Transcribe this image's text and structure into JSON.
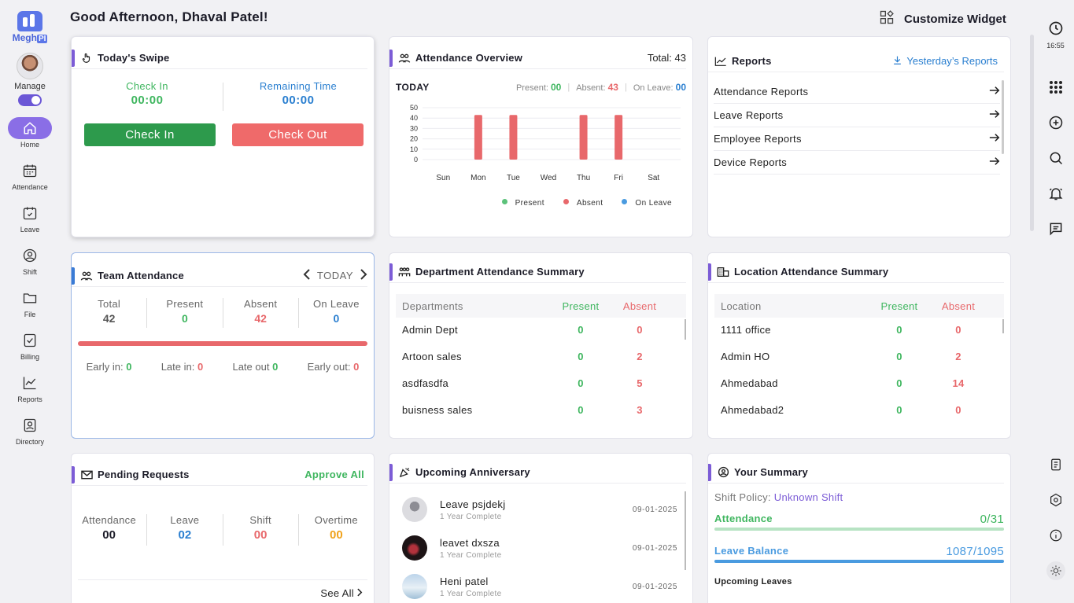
{
  "brand": {
    "name": "Megh",
    "suffix": "PI"
  },
  "header": {
    "greeting": "Good Afternoon, Dhaval Patel!",
    "customize_label": "Customize Widget"
  },
  "sidebar": {
    "manage_label": "Manage",
    "items": [
      {
        "label": "Home",
        "icon": "home-icon"
      },
      {
        "label": "Attendance",
        "icon": "calendar-icon"
      },
      {
        "label": "Leave",
        "icon": "leave-calendar-icon"
      },
      {
        "label": "Shift",
        "icon": "shift-icon"
      },
      {
        "label": "File",
        "icon": "folder-icon"
      },
      {
        "label": "Billing",
        "icon": "billing-icon"
      },
      {
        "label": "Reports",
        "icon": "chart-line-icon"
      },
      {
        "label": "Directory",
        "icon": "directory-icon"
      }
    ]
  },
  "rail": {
    "time": "16:55"
  },
  "swipe": {
    "title": "Today's Swipe",
    "check_in_label": "Check In",
    "check_in_value": "00:00",
    "remaining_label": "Remaining Time",
    "remaining_value": "00:00",
    "check_in_button": "Check In",
    "check_out_button": "Check Out"
  },
  "overview": {
    "title": "Attendance Overview",
    "total_label": "Total:",
    "total": "43",
    "today_label": "TODAY",
    "present_label": "Present:",
    "present": "00",
    "absent_label": "Absent:",
    "absent": "43",
    "leave_label": "On Leave:",
    "leave": "00"
  },
  "chart_data": {
    "type": "bar",
    "categories": [
      "Sun",
      "Mon",
      "Tue",
      "Wed",
      "Thu",
      "Fri",
      "Sat"
    ],
    "series": [
      {
        "name": "Present",
        "color": "#5cc27a",
        "values": [
          0,
          0,
          0,
          0,
          0,
          0,
          0
        ]
      },
      {
        "name": "Absent",
        "color": "#e8686b",
        "values": [
          0,
          43,
          43,
          0,
          43,
          43,
          0
        ]
      },
      {
        "name": "On Leave",
        "color": "#4a9be0",
        "values": [
          0,
          0,
          0,
          0,
          0,
          0,
          0
        ]
      }
    ],
    "ylim": [
      0,
      50
    ],
    "yticks": [
      0,
      10,
      20,
      30,
      40,
      50
    ],
    "legend": "bottom-right",
    "grid": true
  },
  "reports": {
    "title": "Reports",
    "yesterday_label": "Yesterday’s Reports",
    "items": [
      "Attendance Reports",
      "Leave Reports",
      "Employee Reports",
      "Device Reports"
    ]
  },
  "team": {
    "title": "Team Attendance",
    "period": "TODAY",
    "total_label": "Total",
    "total": "42",
    "present_label": "Present",
    "present": "0",
    "absent_label": "Absent",
    "absent": "42",
    "leave_label": "On Leave",
    "leave": "0",
    "absent_fraction": 1.0,
    "early_in_label": "Early in:",
    "early_in": "0",
    "late_in_label": "Late in:",
    "late_in": "0",
    "late_out_label": "Late out",
    "late_out": "0",
    "early_out_label": "Early out:",
    "early_out": "0"
  },
  "dept": {
    "title": "Department Attendance Summary",
    "headers": [
      "Departments",
      "Present",
      "Absent"
    ],
    "rows": [
      {
        "name": "Admin Dept",
        "present": "0",
        "absent": "0"
      },
      {
        "name": "Artoon sales",
        "present": "0",
        "absent": "2"
      },
      {
        "name": "asdfasdfa",
        "present": "0",
        "absent": "5"
      },
      {
        "name": "buisness sales",
        "present": "0",
        "absent": "3"
      }
    ]
  },
  "location": {
    "title": "Location Attendance Summary",
    "headers": [
      "Location",
      "Present",
      "Absent"
    ],
    "rows": [
      {
        "name": "1111 office",
        "present": "0",
        "absent": "0"
      },
      {
        "name": "Admin HO",
        "present": "0",
        "absent": "2"
      },
      {
        "name": "Ahmedabad",
        "present": "0",
        "absent": "14"
      },
      {
        "name": "Ahmedabad2",
        "present": "0",
        "absent": "0"
      }
    ]
  },
  "pending": {
    "title": "Pending Requests",
    "approve_all": "Approve All",
    "attendance_label": "Attendance",
    "attendance": "00",
    "leave_label": "Leave",
    "leave": "02",
    "shift_label": "Shift",
    "shift": "00",
    "overtime_label": "Overtime",
    "overtime": "00",
    "see_all": "See All"
  },
  "anniversary": {
    "title": "Upcoming Anniversary",
    "items": [
      {
        "name": "Leave psjdekj",
        "sub": "1 Year Complete",
        "date": "09-01-2025"
      },
      {
        "name": "leavet dxsza",
        "sub": "1 Year Complete",
        "date": "09-01-2025"
      },
      {
        "name": "Heni patel",
        "sub": "1 Year Complete",
        "date": "09-01-2025"
      }
    ]
  },
  "summary": {
    "title": "Your Summary",
    "policy_label": "Shift Policy:",
    "policy_value": "Unknown Shift",
    "attendance_label": "Attendance",
    "attendance_value": "0/31",
    "leave_label": "Leave Balance",
    "leave_value": "1087/1095",
    "upcoming_label": "Upcoming Leaves"
  },
  "colors": {
    "primary": "#7c5cd6",
    "green": "#3fb65f",
    "red": "#e8686b",
    "blue": "#2a7fd0",
    "orange": "#f0a21b"
  }
}
